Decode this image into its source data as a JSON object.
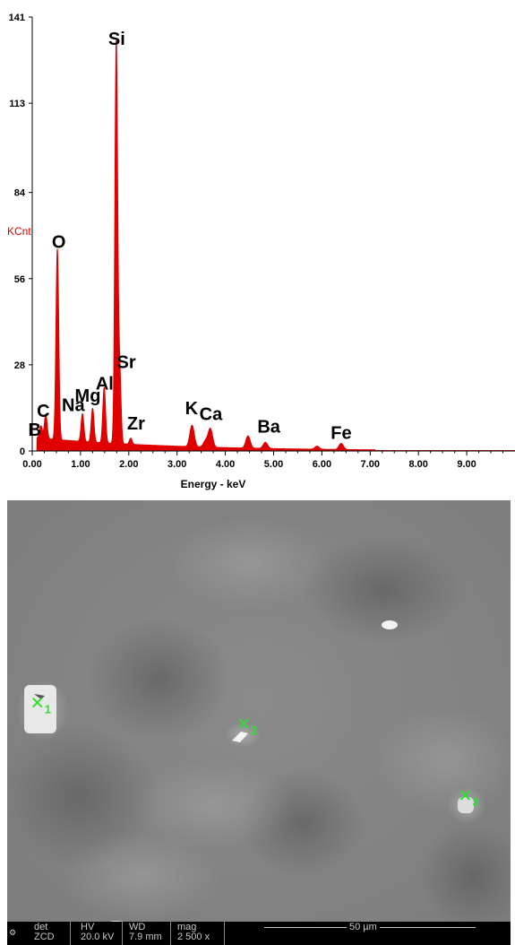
{
  "chart_data": {
    "type": "line",
    "title": "",
    "xlabel": "Energy - keV",
    "ylabel": "KCnt",
    "xlim": [
      0,
      10
    ],
    "ylim": [
      0,
      141
    ],
    "x_ticks": [
      "0.00",
      "1.00",
      "2.00",
      "3.00",
      "4.00",
      "5.00",
      "6.00",
      "7.00",
      "8.00",
      "9.00"
    ],
    "y_ticks": [
      "0",
      "28",
      "56",
      "84",
      "113",
      "141"
    ],
    "peaks": [
      {
        "label": "B",
        "energy": 0.18,
        "height": 4,
        "label_x": 0.05,
        "label_y": 5
      },
      {
        "label": "C",
        "energy": 0.28,
        "height": 8,
        "label_x": 0.23,
        "label_y": 11
      },
      {
        "label": "O",
        "energy": 0.52,
        "height": 62,
        "label_x": 0.55,
        "label_y": 66
      },
      {
        "label": "Na",
        "energy": 1.04,
        "height": 9,
        "label_x": 0.85,
        "label_y": 13
      },
      {
        "label": "Mg",
        "energy": 1.25,
        "height": 11,
        "label_x": 1.15,
        "label_y": 16
      },
      {
        "label": "Al",
        "energy": 1.49,
        "height": 18,
        "label_x": 1.5,
        "label_y": 20
      },
      {
        "label": "Si",
        "energy": 1.74,
        "height": 130,
        "label_x": 1.75,
        "label_y": 132
      },
      {
        "label": "Sr",
        "energy": 1.81,
        "height": 24,
        "label_x": 1.95,
        "label_y": 27
      },
      {
        "label": "Zr",
        "energy": 2.04,
        "height": 2,
        "label_x": 2.15,
        "label_y": 7
      },
      {
        "label": "K",
        "energy": 3.31,
        "height": 7,
        "label_x": 3.3,
        "label_y": 12
      },
      {
        "label": "Ca",
        "energy": 3.69,
        "height": 6,
        "label_x": 3.7,
        "label_y": 10
      },
      {
        "label": "Ba",
        "energy": 4.47,
        "height": 4,
        "label_x": 4.9,
        "label_y": 6
      },
      {
        "label": "Fe",
        "energy": 6.4,
        "height": 2,
        "label_x": 6.4,
        "label_y": 4
      }
    ],
    "extra_peaks": [
      {
        "energy": 3.59,
        "height": 2
      },
      {
        "energy": 4.83,
        "height": 2
      },
      {
        "energy": 5.9,
        "height": 1
      }
    ],
    "colors": {
      "spectrum": "#e00000",
      "axis": "#000000",
      "ylabel": "#e00000"
    }
  },
  "sem_image": {
    "markers": [
      {
        "label": "1",
        "x": 0.06,
        "y": 0.48
      },
      {
        "label": "2",
        "x": 0.47,
        "y": 0.53
      },
      {
        "label": "3",
        "x": 0.91,
        "y": 0.7
      }
    ],
    "marker_color": "#33dd33",
    "databar": {
      "det_label": "det",
      "det_value": "ZCD",
      "hv_label": "HV",
      "hv_value": "20.0 kV",
      "wd_label": "WD",
      "wd_value": "7.9 mm",
      "mag_label": "mag",
      "mag_value": "2 500 x",
      "scale_text": "50 µm"
    }
  }
}
